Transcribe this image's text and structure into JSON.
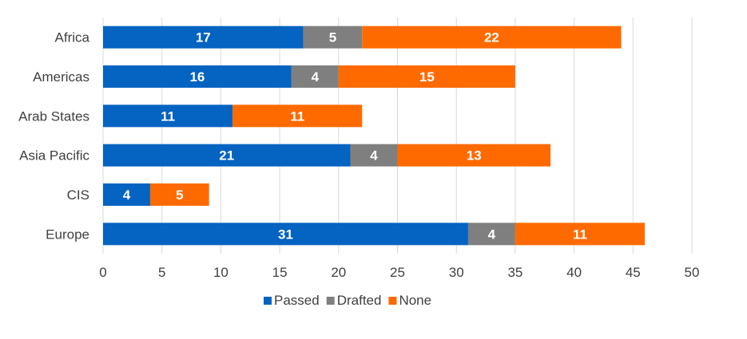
{
  "chart_data": {
    "type": "bar",
    "orientation": "horizontal",
    "stacked": true,
    "categories": [
      "Africa",
      "Americas",
      "Arab States",
      "Asia Pacific",
      "CIS",
      "Europe"
    ],
    "series": [
      {
        "name": "Passed",
        "color": "#0563c1",
        "values": [
          17,
          16,
          11,
          21,
          4,
          31
        ]
      },
      {
        "name": "Drafted",
        "color": "#7f7f7f",
        "values": [
          5,
          4,
          0,
          4,
          0,
          4
        ]
      },
      {
        "name": "None",
        "color": "#ff6a00",
        "values": [
          22,
          15,
          11,
          13,
          5,
          11
        ]
      }
    ],
    "xlim": [
      0,
      50
    ],
    "xticks": [
      "0",
      "5",
      "10",
      "15",
      "20",
      "25",
      "30",
      "35",
      "40",
      "45",
      "50"
    ],
    "grid": true,
    "legend_position": "bottom",
    "data_labels": true
  }
}
